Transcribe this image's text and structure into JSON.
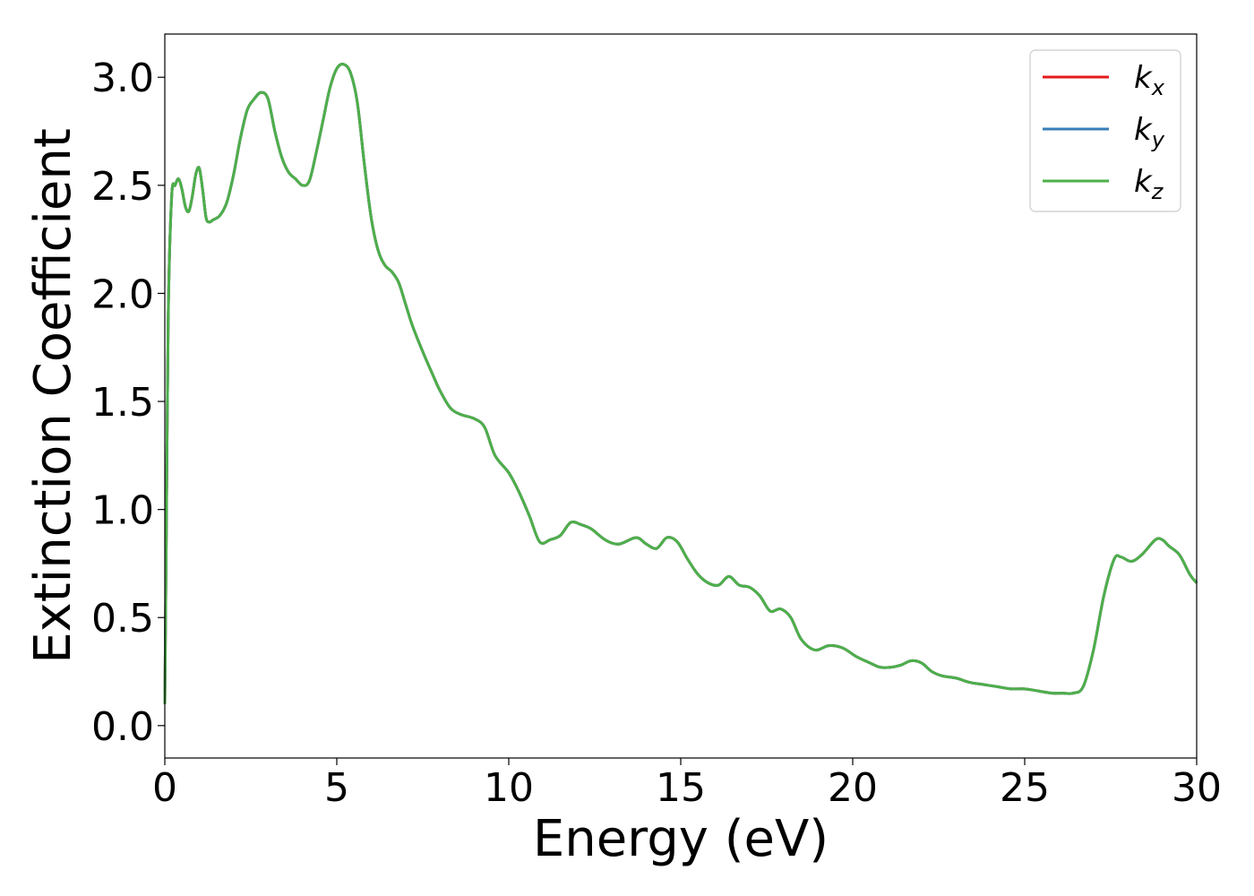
{
  "chart_data": {
    "type": "line",
    "xlabel": "Energy (eV)",
    "ylabel": "Extinction Coefficient",
    "xlim": [
      0,
      30
    ],
    "ylim": [
      -0.15,
      3.2
    ],
    "xticks": [
      0,
      5,
      10,
      15,
      20,
      25,
      30
    ],
    "xtick_labels": [
      "0",
      "5",
      "10",
      "15",
      "20",
      "25",
      "30"
    ],
    "yticks": [
      0.0,
      0.5,
      1.0,
      1.5,
      2.0,
      2.5,
      3.0
    ],
    "ytick_labels": [
      "0.0",
      "0.5",
      "1.0",
      "1.5",
      "2.0",
      "2.5",
      "3.0"
    ],
    "grid": false,
    "legend_position": "top-right",
    "series": [
      {
        "name": "k_x",
        "legend_base": "k",
        "legend_sub": "x",
        "color": "#e41a1c",
        "x": [
          0,
          0.05,
          0.1,
          0.2,
          0.3,
          0.4,
          0.5,
          0.6,
          0.7,
          0.8,
          0.9,
          1.0,
          1.1,
          1.2,
          1.3,
          1.4,
          1.6,
          1.8,
          2.0,
          2.2,
          2.4,
          2.6,
          2.8,
          3.0,
          3.2,
          3.4,
          3.6,
          3.8,
          4.0,
          4.2,
          4.4,
          4.6,
          4.8,
          5.0,
          5.2,
          5.4,
          5.6,
          5.8,
          6.0,
          6.2,
          6.4,
          6.6,
          6.8,
          7.0,
          7.2,
          7.5,
          7.8,
          8.0,
          8.3,
          8.6,
          9.0,
          9.3,
          9.6,
          10.0,
          10.3,
          10.6,
          10.9,
          11.2,
          11.5,
          11.8,
          12.1,
          12.4,
          12.8,
          13.2,
          13.7,
          14.0,
          14.3,
          14.6,
          14.9,
          15.2,
          15.5,
          15.8,
          16.1,
          16.4,
          16.7,
          17.0,
          17.3,
          17.6,
          17.9,
          18.2,
          18.5,
          18.9,
          19.3,
          19.7,
          20.1,
          20.5,
          20.8,
          21.1,
          21.4,
          21.7,
          22.0,
          22.3,
          22.6,
          23.0,
          23.4,
          23.8,
          24.2,
          24.6,
          25.0,
          25.4,
          25.8,
          26.1,
          26.4,
          26.7,
          27.0,
          27.3,
          27.6,
          27.8,
          28.1,
          28.4,
          28.8,
          29.0,
          29.2,
          29.5,
          29.8,
          30.0
        ],
        "y": [
          0.1,
          1.0,
          1.9,
          2.45,
          2.5,
          2.53,
          2.48,
          2.4,
          2.38,
          2.45,
          2.55,
          2.58,
          2.48,
          2.35,
          2.33,
          2.34,
          2.36,
          2.42,
          2.55,
          2.72,
          2.85,
          2.9,
          2.93,
          2.9,
          2.75,
          2.63,
          2.56,
          2.53,
          2.5,
          2.52,
          2.65,
          2.8,
          2.95,
          3.04,
          3.06,
          3.02,
          2.88,
          2.6,
          2.35,
          2.2,
          2.13,
          2.1,
          2.05,
          1.95,
          1.85,
          1.73,
          1.62,
          1.55,
          1.47,
          1.44,
          1.42,
          1.38,
          1.25,
          1.17,
          1.08,
          0.97,
          0.85,
          0.86,
          0.88,
          0.94,
          0.93,
          0.91,
          0.86,
          0.84,
          0.87,
          0.84,
          0.82,
          0.87,
          0.85,
          0.77,
          0.7,
          0.66,
          0.65,
          0.69,
          0.65,
          0.64,
          0.6,
          0.53,
          0.54,
          0.5,
          0.4,
          0.35,
          0.37,
          0.36,
          0.32,
          0.29,
          0.27,
          0.27,
          0.28,
          0.3,
          0.29,
          0.25,
          0.23,
          0.22,
          0.2,
          0.19,
          0.18,
          0.17,
          0.17,
          0.16,
          0.15,
          0.15,
          0.15,
          0.18,
          0.35,
          0.6,
          0.77,
          0.78,
          0.76,
          0.79,
          0.86,
          0.86,
          0.83,
          0.79,
          0.7,
          0.66
        ]
      },
      {
        "name": "k_y",
        "legend_base": "k",
        "legend_sub": "y",
        "color": "#377eb8",
        "x": [
          0,
          0.05,
          0.1,
          0.2,
          0.3,
          0.4,
          0.5,
          0.6,
          0.7,
          0.8,
          0.9,
          1.0,
          1.1,
          1.2,
          1.3,
          1.4,
          1.6,
          1.8,
          2.0,
          2.2,
          2.4,
          2.6,
          2.8,
          3.0,
          3.2,
          3.4,
          3.6,
          3.8,
          4.0,
          4.2,
          4.4,
          4.6,
          4.8,
          5.0,
          5.2,
          5.4,
          5.6,
          5.8,
          6.0,
          6.2,
          6.4,
          6.6,
          6.8,
          7.0,
          7.2,
          7.5,
          7.8,
          8.0,
          8.3,
          8.6,
          9.0,
          9.3,
          9.6,
          10.0,
          10.3,
          10.6,
          10.9,
          11.2,
          11.5,
          11.8,
          12.1,
          12.4,
          12.8,
          13.2,
          13.7,
          14.0,
          14.3,
          14.6,
          14.9,
          15.2,
          15.5,
          15.8,
          16.1,
          16.4,
          16.7,
          17.0,
          17.3,
          17.6,
          17.9,
          18.2,
          18.5,
          18.9,
          19.3,
          19.7,
          20.1,
          20.5,
          20.8,
          21.1,
          21.4,
          21.7,
          22.0,
          22.3,
          22.6,
          23.0,
          23.4,
          23.8,
          24.2,
          24.6,
          25.0,
          25.4,
          25.8,
          26.1,
          26.4,
          26.7,
          27.0,
          27.3,
          27.6,
          27.8,
          28.1,
          28.4,
          28.8,
          29.0,
          29.2,
          29.5,
          29.8,
          30.0
        ],
        "y": [
          0.1,
          1.0,
          1.9,
          2.45,
          2.5,
          2.53,
          2.48,
          2.4,
          2.38,
          2.45,
          2.55,
          2.58,
          2.48,
          2.35,
          2.33,
          2.34,
          2.36,
          2.42,
          2.55,
          2.72,
          2.85,
          2.9,
          2.93,
          2.9,
          2.75,
          2.63,
          2.56,
          2.53,
          2.5,
          2.52,
          2.65,
          2.8,
          2.95,
          3.04,
          3.06,
          3.02,
          2.88,
          2.6,
          2.35,
          2.2,
          2.13,
          2.1,
          2.05,
          1.95,
          1.85,
          1.73,
          1.62,
          1.55,
          1.47,
          1.44,
          1.42,
          1.38,
          1.25,
          1.17,
          1.08,
          0.97,
          0.85,
          0.86,
          0.88,
          0.94,
          0.93,
          0.91,
          0.86,
          0.84,
          0.87,
          0.84,
          0.82,
          0.87,
          0.85,
          0.77,
          0.7,
          0.66,
          0.65,
          0.69,
          0.65,
          0.64,
          0.6,
          0.53,
          0.54,
          0.5,
          0.4,
          0.35,
          0.37,
          0.36,
          0.32,
          0.29,
          0.27,
          0.27,
          0.28,
          0.3,
          0.29,
          0.25,
          0.23,
          0.22,
          0.2,
          0.19,
          0.18,
          0.17,
          0.17,
          0.16,
          0.15,
          0.15,
          0.15,
          0.18,
          0.35,
          0.6,
          0.77,
          0.78,
          0.76,
          0.79,
          0.86,
          0.86,
          0.83,
          0.79,
          0.7,
          0.66
        ]
      },
      {
        "name": "k_z",
        "legend_base": "k",
        "legend_sub": "z",
        "color": "#4daf4a",
        "x": [
          0,
          0.05,
          0.1,
          0.2,
          0.3,
          0.4,
          0.5,
          0.6,
          0.7,
          0.8,
          0.9,
          1.0,
          1.1,
          1.2,
          1.3,
          1.4,
          1.6,
          1.8,
          2.0,
          2.2,
          2.4,
          2.6,
          2.8,
          3.0,
          3.2,
          3.4,
          3.6,
          3.8,
          4.0,
          4.2,
          4.4,
          4.6,
          4.8,
          5.0,
          5.2,
          5.4,
          5.6,
          5.8,
          6.0,
          6.2,
          6.4,
          6.6,
          6.8,
          7.0,
          7.2,
          7.5,
          7.8,
          8.0,
          8.3,
          8.6,
          9.0,
          9.3,
          9.6,
          10.0,
          10.3,
          10.6,
          10.9,
          11.2,
          11.5,
          11.8,
          12.1,
          12.4,
          12.8,
          13.2,
          13.7,
          14.0,
          14.3,
          14.6,
          14.9,
          15.2,
          15.5,
          15.8,
          16.1,
          16.4,
          16.7,
          17.0,
          17.3,
          17.6,
          17.9,
          18.2,
          18.5,
          18.9,
          19.3,
          19.7,
          20.1,
          20.5,
          20.8,
          21.1,
          21.4,
          21.7,
          22.0,
          22.3,
          22.6,
          23.0,
          23.4,
          23.8,
          24.2,
          24.6,
          25.0,
          25.4,
          25.8,
          26.1,
          26.4,
          26.7,
          27.0,
          27.3,
          27.6,
          27.8,
          28.1,
          28.4,
          28.8,
          29.0,
          29.2,
          29.5,
          29.8,
          30.0
        ],
        "y": [
          0.1,
          1.0,
          1.9,
          2.45,
          2.5,
          2.53,
          2.48,
          2.4,
          2.38,
          2.45,
          2.55,
          2.58,
          2.48,
          2.35,
          2.33,
          2.34,
          2.36,
          2.42,
          2.55,
          2.72,
          2.85,
          2.9,
          2.93,
          2.9,
          2.75,
          2.63,
          2.56,
          2.53,
          2.5,
          2.52,
          2.65,
          2.8,
          2.95,
          3.04,
          3.06,
          3.02,
          2.88,
          2.6,
          2.35,
          2.2,
          2.13,
          2.1,
          2.05,
          1.95,
          1.85,
          1.73,
          1.62,
          1.55,
          1.47,
          1.44,
          1.42,
          1.38,
          1.25,
          1.17,
          1.08,
          0.97,
          0.85,
          0.86,
          0.88,
          0.94,
          0.93,
          0.91,
          0.86,
          0.84,
          0.87,
          0.84,
          0.82,
          0.87,
          0.85,
          0.77,
          0.7,
          0.66,
          0.65,
          0.69,
          0.65,
          0.64,
          0.6,
          0.53,
          0.54,
          0.5,
          0.4,
          0.35,
          0.37,
          0.36,
          0.32,
          0.29,
          0.27,
          0.27,
          0.28,
          0.3,
          0.29,
          0.25,
          0.23,
          0.22,
          0.2,
          0.19,
          0.18,
          0.17,
          0.17,
          0.16,
          0.15,
          0.15,
          0.15,
          0.18,
          0.35,
          0.6,
          0.77,
          0.78,
          0.76,
          0.79,
          0.86,
          0.86,
          0.83,
          0.79,
          0.7,
          0.66
        ]
      }
    ]
  }
}
